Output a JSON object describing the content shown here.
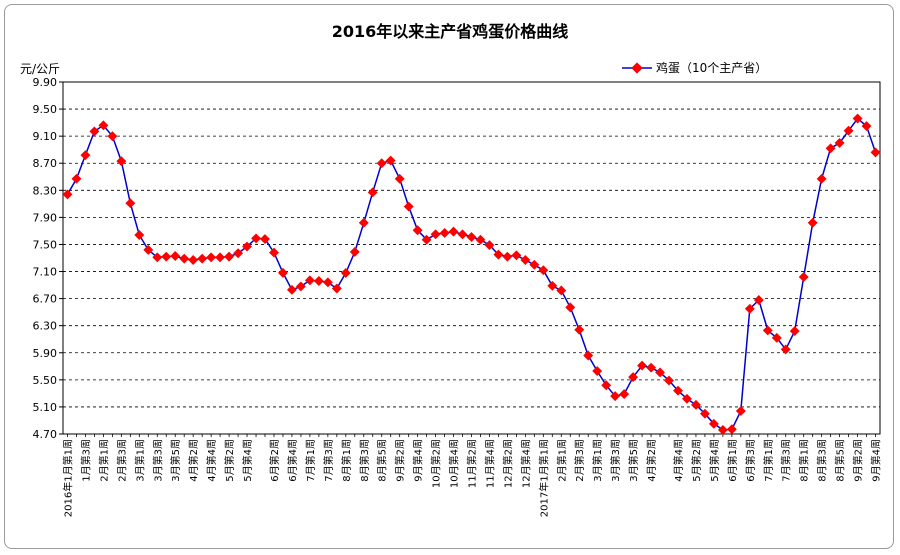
{
  "chart_data": {
    "type": "line",
    "title": "2016年以来主产省鸡蛋价格曲线",
    "ylabel": "元/公斤",
    "ylim": [
      4.7,
      9.9
    ],
    "yticks": [
      "9.90",
      "9.50",
      "9.10",
      "8.70",
      "8.30",
      "7.90",
      "7.50",
      "7.10",
      "6.70",
      "6.30",
      "5.90",
      "5.50",
      "5.10",
      "4.70"
    ],
    "grid": "horizontal-dashed",
    "legend_position": "top-right",
    "x_tick_labels": [
      "2016年1月第1周",
      "1月第3周",
      "2月第1周",
      "2月第3周",
      "3月第1周",
      "3月第3周",
      "3月第5周",
      "4月第2周",
      "4月第4周",
      "5月第2周",
      "5月第4周",
      "6月第2周",
      "6月第4周",
      "7月第1周",
      "7月第3周",
      "8月第1周",
      "8月第3周",
      "8月第5周",
      "9月第2周",
      "9月第4周",
      "10月第2周",
      "10月第4周",
      "11月第2周",
      "11月第4周",
      "12月第2周",
      "12月第4周",
      "2017年1月第1周",
      "2月第1周",
      "2月第3周",
      "3月第1周",
      "3月第3周",
      "3月第5周",
      "4月第2周",
      "4月第4周",
      "5月第2周",
      "5月第4周",
      "6月第1周",
      "6月第3周",
      "7月第1周",
      "7月第3周",
      "8月第1周",
      "8月第3周",
      "8月第5周",
      "9月第2周",
      "9月第4周"
    ],
    "series": [
      {
        "name": "鸡蛋（10个主产省）",
        "color": "#0000cc",
        "marker_color": "#ff0000",
        "values": [
          8.24,
          8.47,
          8.82,
          9.17,
          9.26,
          9.1,
          8.73,
          8.11,
          7.64,
          7.42,
          7.31,
          7.32,
          7.33,
          7.29,
          7.27,
          7.29,
          7.31,
          7.31,
          7.32,
          7.37,
          7.47,
          7.59,
          7.58,
          7.38,
          7.08,
          6.83,
          6.88,
          6.97,
          6.96,
          6.94,
          6.85,
          7.08,
          7.39,
          7.82,
          8.27,
          8.7,
          8.74,
          8.47,
          8.06,
          7.71,
          7.57,
          7.65,
          7.67,
          7.69,
          7.65,
          7.61,
          7.57,
          7.49,
          7.35,
          7.32,
          7.34,
          7.27,
          7.2,
          7.12,
          6.89,
          6.82,
          6.57,
          6.24,
          5.86,
          5.63,
          5.42,
          5.26,
          5.29,
          5.54,
          5.71,
          5.68,
          5.61,
          5.49,
          5.34,
          5.22,
          5.13,
          5.0,
          4.85,
          4.76,
          4.77,
          5.04,
          6.55,
          6.68,
          6.23,
          6.12,
          5.95,
          6.22,
          7.02,
          7.82,
          8.47,
          8.92,
          9.0,
          9.18,
          9.36,
          9.25,
          8.86
        ]
      }
    ]
  }
}
